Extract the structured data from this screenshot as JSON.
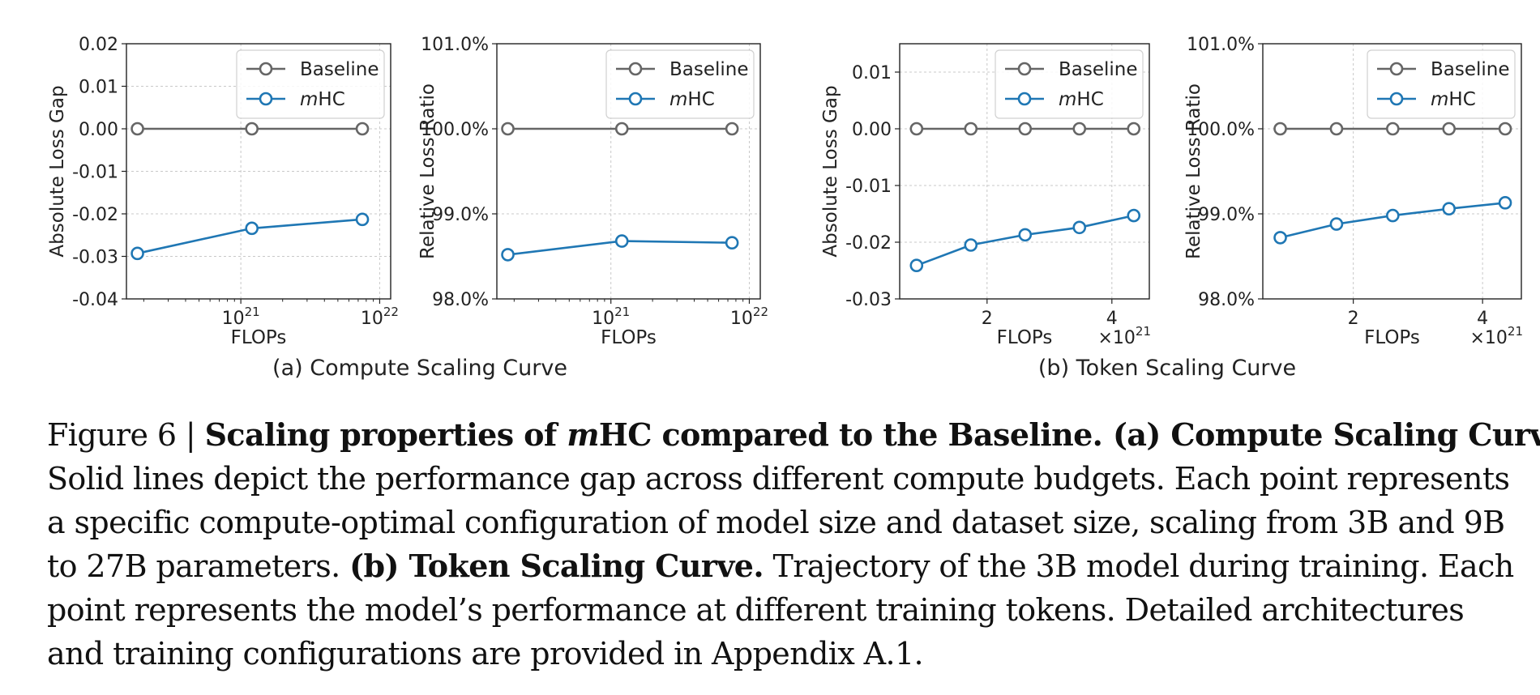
{
  "colors": {
    "baseline": "#666666",
    "mhc": "#1f77b4",
    "grid": "#c8c8c8",
    "axis": "#222222"
  },
  "legend_labels": {
    "baseline": "Baseline",
    "mhc_prefix": "m",
    "mhc_suffix": "HC"
  },
  "group_labels": {
    "a": "(a) Compute Scaling Curve",
    "b": "(b) Token Scaling Curve"
  },
  "chart_data": [
    {
      "id": "a1",
      "type": "line",
      "title": "",
      "xlabel": "FLOPs",
      "ylabel": "Absolute Loss Gap",
      "xscale": "log",
      "xlim": [
        1.5e+20,
        1.2e+22
      ],
      "ylim": [
        -0.04,
        0.02
      ],
      "xticks": [
        1e+21,
        1e+22
      ],
      "xtick_labels": [
        {
          "base": "10",
          "exp": "21"
        },
        {
          "base": "10",
          "exp": "22"
        }
      ],
      "yticks": [
        -0.04,
        -0.03,
        -0.02,
        -0.01,
        0.0,
        0.01,
        0.02
      ],
      "ytick_labels": [
        "-0.04",
        "-0.03",
        "-0.02",
        "-0.01",
        "0.00",
        "0.01",
        "0.02"
      ],
      "x_multiplier": "",
      "series": [
        {
          "name": "Baseline",
          "x": [
            1.8e+20,
            1.2e+21,
            7.5e+21
          ],
          "y": [
            0.0,
            0.0,
            0.0
          ]
        },
        {
          "name": "mHC",
          "x": [
            1.8e+20,
            1.2e+21,
            7.5e+21
          ],
          "y": [
            -0.0293,
            -0.0234,
            -0.0213
          ]
        }
      ],
      "legend": "top-right",
      "grid": true
    },
    {
      "id": "a2",
      "type": "line",
      "title": "",
      "xlabel": "FLOPs",
      "ylabel": "Relative Loss Ratio",
      "xscale": "log",
      "xlim": [
        1.5e+20,
        1.2e+22
      ],
      "ylim": [
        98.0,
        101.0
      ],
      "xticks": [
        1e+21,
        1e+22
      ],
      "xtick_labels": [
        {
          "base": "10",
          "exp": "21"
        },
        {
          "base": "10",
          "exp": "22"
        }
      ],
      "yticks": [
        98.0,
        99.0,
        100.0,
        101.0
      ],
      "ytick_labels": [
        "98.0%",
        "99.0%",
        "100.0%",
        "101.0%"
      ],
      "x_multiplier": "",
      "series": [
        {
          "name": "Baseline",
          "x": [
            1.8e+20,
            1.2e+21,
            7.5e+21
          ],
          "y": [
            100.0,
            100.0,
            100.0
          ]
        },
        {
          "name": "mHC",
          "x": [
            1.8e+20,
            1.2e+21,
            7.5e+21
          ],
          "y": [
            98.52,
            98.68,
            98.66
          ]
        }
      ],
      "legend": "top-right",
      "grid": true
    },
    {
      "id": "b1",
      "type": "line",
      "title": "",
      "xlabel": "FLOPs",
      "ylabel": "Absolute Loss Gap",
      "xscale": "linear",
      "xlim": [
        0.6,
        4.6
      ],
      "ylim": [
        -0.03,
        0.015
      ],
      "xticks": [
        2,
        4
      ],
      "xtick_labels": [
        "2",
        "4"
      ],
      "yticks": [
        -0.03,
        -0.02,
        -0.01,
        0.0,
        0.01
      ],
      "ytick_labels": [
        "-0.03",
        "-0.02",
        "-0.01",
        "0.00",
        "0.01"
      ],
      "x_multiplier": {
        "prefix": "×10",
        "exp": "21"
      },
      "series": [
        {
          "name": "Baseline",
          "x": [
            0.87,
            1.74,
            2.61,
            3.48,
            4.35
          ],
          "y": [
            0.0,
            0.0,
            0.0,
            0.0,
            0.0
          ]
        },
        {
          "name": "mHC",
          "x": [
            0.87,
            1.74,
            2.61,
            3.48,
            4.35
          ],
          "y": [
            -0.0241,
            -0.0205,
            -0.0187,
            -0.0174,
            -0.0153
          ]
        }
      ],
      "legend": "top-right",
      "grid": true
    },
    {
      "id": "b2",
      "type": "line",
      "title": "",
      "xlabel": "FLOPs",
      "ylabel": "Relative Loss Ratio",
      "xscale": "linear",
      "xlim": [
        0.6,
        4.6
      ],
      "ylim": [
        98.0,
        101.0
      ],
      "xticks": [
        2,
        4
      ],
      "xtick_labels": [
        "2",
        "4"
      ],
      "yticks": [
        98.0,
        99.0,
        100.0,
        101.0
      ],
      "ytick_labels": [
        "98.0%",
        "99.0%",
        "100.0%",
        "101.0%"
      ],
      "x_multiplier": {
        "prefix": "×10",
        "exp": "21"
      },
      "series": [
        {
          "name": "Baseline",
          "x": [
            0.87,
            1.74,
            2.61,
            3.48,
            4.35
          ],
          "y": [
            100.0,
            100.0,
            100.0,
            100.0,
            100.0
          ]
        },
        {
          "name": "mHC",
          "x": [
            0.87,
            1.74,
            2.61,
            3.48,
            4.35
          ],
          "y": [
            98.72,
            98.88,
            98.98,
            99.06,
            99.13
          ]
        }
      ],
      "legend": "top-right",
      "grid": true
    }
  ],
  "caption": {
    "fig_label": "Figure 6 | ",
    "bold_pre": "Scaling properties of ",
    "bold_italic_m": "m",
    "bold_post": "HC compared to the Baseline. (a) Compute Scaling Curve.",
    "text_1": "Solid lines depict the performance gap across different compute budgets. Each point represents",
    "text_2": "a specific compute-optimal configuration of model size and dataset size, scaling from 3B and 9B",
    "text_3_pre": "to 27B parameters. ",
    "bold_b": "(b) Token Scaling Curve.",
    "text_3_post": " Trajectory of the 3B model during training. Each",
    "text_4": "point represents the model’s performance at different training tokens. Detailed architectures",
    "text_5": "and training configurations are provided in Appendix A.1."
  }
}
